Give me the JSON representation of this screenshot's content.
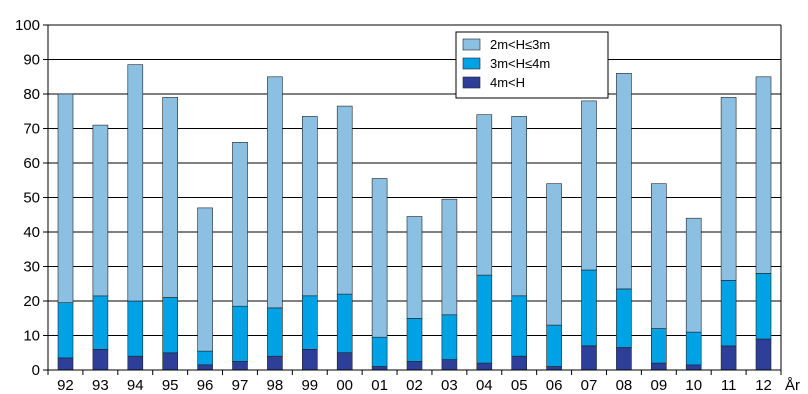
{
  "chart_data": {
    "type": "bar",
    "stacked": true,
    "categories": [
      "92",
      "93",
      "94",
      "95",
      "96",
      "97",
      "98",
      "99",
      "00",
      "01",
      "02",
      "03",
      "04",
      "05",
      "06",
      "07",
      "08",
      "09",
      "10",
      "11",
      "12"
    ],
    "series": [
      {
        "name": "4m<H",
        "color": "#2e3f9a",
        "values": [
          3.5,
          6,
          4,
          5,
          1.5,
          2.5,
          4,
          6,
          5,
          1,
          2.5,
          3,
          2,
          4,
          1,
          7,
          6.5,
          2,
          1.5,
          7,
          9
        ]
      },
      {
        "name": "3m<H≤4m",
        "color": "#00a2e6",
        "values": [
          16,
          15.5,
          16,
          16,
          4,
          16,
          14,
          15.5,
          17,
          8.5,
          12.5,
          13,
          25.5,
          17.5,
          12,
          22,
          17,
          10,
          9.5,
          19,
          19
        ]
      },
      {
        "name": "2m<H≤3m",
        "color": "#8cc0e3",
        "values": [
          60.5,
          49.5,
          68.5,
          58,
          41.5,
          47.5,
          67,
          52,
          54.5,
          46,
          29.5,
          33.5,
          46.5,
          52,
          41,
          49,
          62.5,
          42,
          33,
          53,
          57
        ]
      }
    ],
    "title": "",
    "xlabel": "År",
    "ylabel": "",
    "ylim": [
      0,
      100
    ],
    "yticks": [
      0,
      10,
      20,
      30,
      40,
      50,
      60,
      70,
      80,
      90,
      100
    ],
    "grid": true,
    "legend_position": "top-right"
  },
  "legend_order": [
    2,
    1,
    0
  ]
}
